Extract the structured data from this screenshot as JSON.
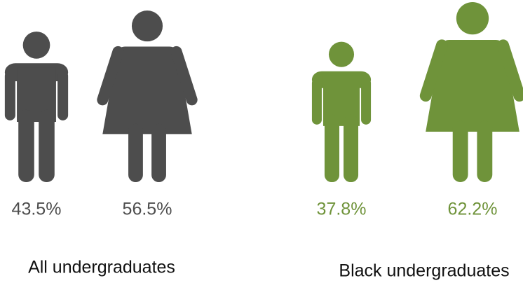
{
  "chart_data": {
    "type": "pictograph",
    "groups": [
      {
        "label": "All undergraduates",
        "color": "#4d4d4d",
        "values": [
          43.5,
          56.5
        ],
        "value_labels": [
          "43.5%",
          "56.5%"
        ]
      },
      {
        "label": "Black undergraduates",
        "color": "#6f933a",
        "values": [
          37.8,
          62.2
        ],
        "value_labels": [
          "37.8%",
          "62.2%"
        ]
      }
    ]
  }
}
